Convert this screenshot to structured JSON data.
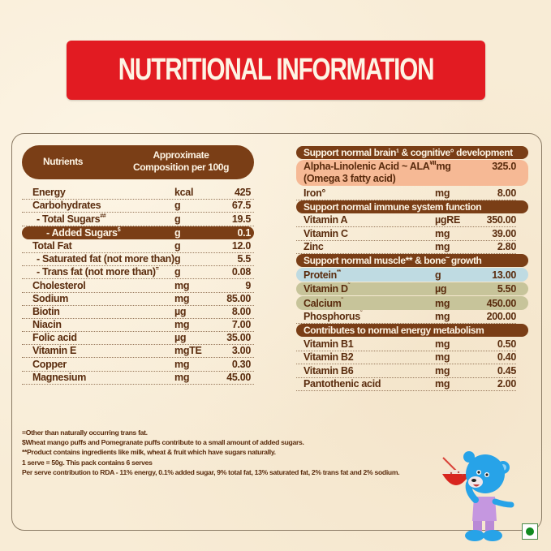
{
  "title": "NUTRITIONAL INFORMATION",
  "colors": {
    "banner": "#e21b22",
    "header_brown": "#7a3e16",
    "text_brown": "#5a2c0e",
    "ala_highlight": "#f6b995",
    "protein_highlight": "#bfdbe2",
    "bone_highlight": "#c7c49a",
    "veg_dot": "#0f8a1e"
  },
  "left_table": {
    "header": {
      "nutrients": "Nutrients",
      "composition_line1": "Approximate",
      "composition_line2": "Composition per 100g"
    },
    "rows": [
      {
        "name": "Energy",
        "sup": "",
        "unit": "kcal",
        "value": "425"
      },
      {
        "name": "Carbohydrates",
        "sup": "",
        "unit": "g",
        "value": "67.5"
      },
      {
        "name": " - Total Sugars",
        "sup": "##",
        "unit": "g",
        "value": "19.5"
      },
      {
        "name": " - Added Sugars",
        "sup": "$",
        "unit": "g",
        "value": "0.1",
        "highlight": true
      },
      {
        "name": "Total Fat",
        "sup": "",
        "unit": "g",
        "value": "12.0"
      },
      {
        "name": " - Saturated fat (not more than)",
        "sup": "",
        "unit": "g",
        "value": "5.5"
      },
      {
        "name": " - Trans fat (not more than)",
        "sup": "=",
        "unit": "g",
        "value": "0.08"
      },
      {
        "name": "Cholesterol",
        "sup": "",
        "unit": "mg",
        "value": "9"
      },
      {
        "name": "Sodium",
        "sup": "",
        "unit": "mg",
        "value": "85.00"
      },
      {
        "name": "Biotin",
        "sup": "",
        "unit": "µg",
        "value": "8.00"
      },
      {
        "name": "Niacin",
        "sup": "",
        "unit": "mg",
        "value": "7.00"
      },
      {
        "name": "Folic acid",
        "sup": "",
        "unit": "µg",
        "value": "35.00"
      },
      {
        "name": "Vitamin E",
        "sup": "",
        "unit": "mgTE",
        "value": "3.00"
      },
      {
        "name": "Copper",
        "sup": "",
        "unit": "mg",
        "value": "0.30"
      },
      {
        "name": "Magnesium",
        "sup": "",
        "unit": "mg",
        "value": "45.00"
      }
    ]
  },
  "right_table": {
    "sections": [
      {
        "title": "Support normal brain¹ & cognitive° development",
        "rows": [
          {
            "name": "Alpha-Linolenic Acid ~ ALA",
            "sup": "¥Ⅱ",
            "name2": "(Omega 3 fatty acid)",
            "unit": "mg",
            "value": "325.0"
          },
          {
            "name": "Iron°",
            "sup": "",
            "unit": "mg",
            "value": "8.00"
          }
        ]
      },
      {
        "title": "Support normal immune system function",
        "rows": [
          {
            "name": "Vitamin A",
            "sup": "",
            "unit": "µgRE",
            "value": "350.00"
          },
          {
            "name": "Vitamin C",
            "sup": "",
            "unit": "mg",
            "value": "39.00"
          },
          {
            "name": "Zinc",
            "sup": "",
            "unit": "mg",
            "value": "2.80"
          }
        ]
      },
      {
        "title": "Support normal muscle** & bone˜ growth",
        "rows": [
          {
            "name": "Protein",
            "sup": "**",
            "unit": "g",
            "value": "13.00"
          },
          {
            "name": "Vitamin D",
            "sup": "˜",
            "unit": "µg",
            "value": "5.50"
          },
          {
            "name": "Calcium",
            "sup": "˜",
            "unit": "mg",
            "value": "450.00"
          },
          {
            "name": "Phosphorus",
            "sup": "˜",
            "unit": "mg",
            "value": "200.00"
          }
        ]
      },
      {
        "title": "Contributes to normal energy metabolism",
        "rows": [
          {
            "name": "Vitamin B1",
            "sup": "",
            "unit": "mg",
            "value": "0.50"
          },
          {
            "name": "Vitamin B2",
            "sup": "",
            "unit": "mg",
            "value": "0.40"
          },
          {
            "name": "Vitamin B6",
            "sup": "",
            "unit": "mg",
            "value": "0.45"
          },
          {
            "name": "Pantothenic acid",
            "sup": "",
            "unit": "mg",
            "value": "2.00"
          }
        ]
      }
    ]
  },
  "footnotes": [
    "=Other than naturally occurring trans fat.",
    "$Wheat mango puffs and Pomegranate puffs contribute to a small amount of added sugars.",
    "**Product contains ingredients like milk, wheat & fruit which have sugars naturally.",
    "1 serve = 50g. This pack contains 6 serves",
    "Per serve contribution to RDA - 11% energy, 0.1% added sugar, 9% total fat, 13% saturated fat, 2% trans fat and 2% sodium."
  ],
  "icons": {
    "mascot": "blue-teddy-bear-with-cereal-bowl",
    "veg_mark": "vegetarian-green-dot"
  }
}
